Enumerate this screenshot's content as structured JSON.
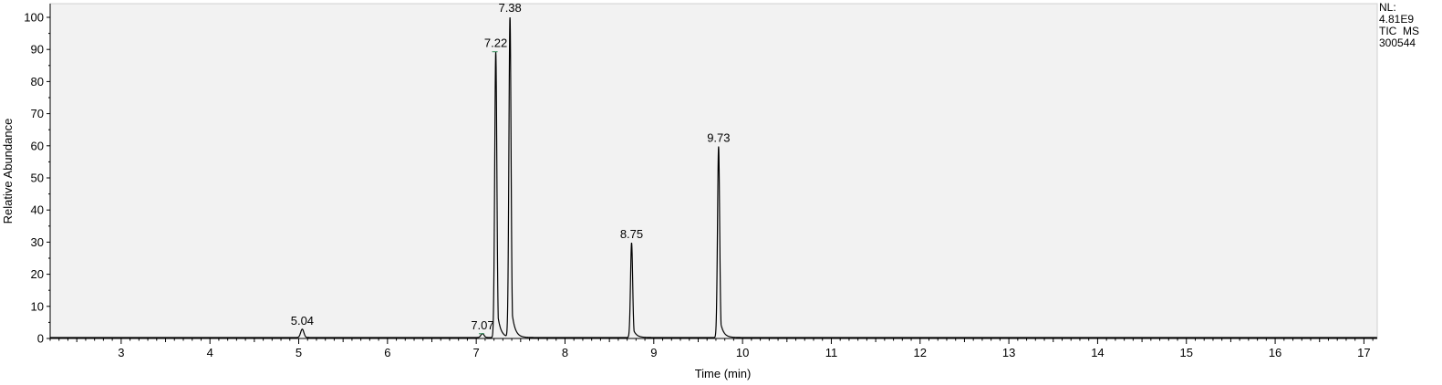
{
  "side_info": {
    "nl_label": "NL:",
    "nl_value": "4.81E9",
    "trace": "TIC  MS",
    "sample": "300544"
  },
  "colors": {
    "plot_background": "#f2f2f2",
    "trace": "#000000",
    "axis": "#000000",
    "peak_marker": "#2e8b57"
  },
  "chart_data": {
    "type": "line",
    "title": "",
    "xlabel": "Time (min)",
    "ylabel": "Relative Abundance",
    "xlim": [
      2.2,
      17.15
    ],
    "ylim": [
      0,
      100
    ],
    "x_ticks": [
      3,
      4,
      5,
      6,
      7,
      8,
      9,
      10,
      11,
      12,
      13,
      14,
      15,
      16,
      17
    ],
    "y_ticks": [
      0,
      10,
      20,
      30,
      40,
      50,
      60,
      70,
      80,
      90,
      100
    ],
    "grid": false,
    "baseline": 0.3,
    "peaks": [
      {
        "rt": 5.04,
        "height": 2.6,
        "label": "5.04"
      },
      {
        "rt": 7.07,
        "height": 1.2,
        "label": "7.07"
      },
      {
        "rt": 7.22,
        "height": 89,
        "label": "7.22"
      },
      {
        "rt": 7.38,
        "height": 100,
        "label": "7.38"
      },
      {
        "rt": 8.75,
        "height": 29.5,
        "label": "8.75"
      },
      {
        "rt": 9.73,
        "height": 59.5,
        "label": "9.73"
      }
    ]
  }
}
